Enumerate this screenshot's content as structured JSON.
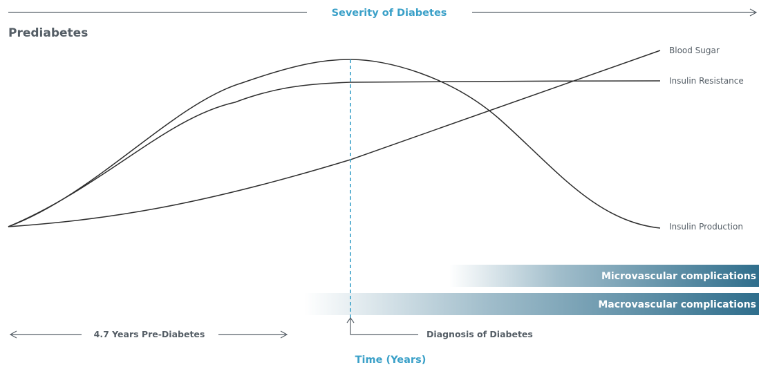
{
  "header": {
    "title": "Severity of Diabetes"
  },
  "stage_label": "Prediabetes",
  "curves": [
    {
      "id": "blood-sugar",
      "label": "Blood Sugar"
    },
    {
      "id": "insulin-resistance",
      "label": "Insulin Resistance"
    },
    {
      "id": "insulin-production",
      "label": "Insulin Production"
    }
  ],
  "bands": [
    {
      "id": "microvascular",
      "label": "Microvascular complications",
      "color": "#2f6e8c"
    },
    {
      "id": "macrovascular",
      "label": "Macrovascular complications",
      "color": "#2f6e8c"
    }
  ],
  "timeline": {
    "prediabetes_span": "4.7 Years Pre-Diabetes",
    "diagnosis": "Diagnosis of Diabetes",
    "axis_label": "Time (Years)"
  },
  "colors": {
    "accent": "#3aa0c8",
    "text": "#555e66",
    "curve": "#2e2e2e",
    "band": "#2f6e8c"
  }
}
